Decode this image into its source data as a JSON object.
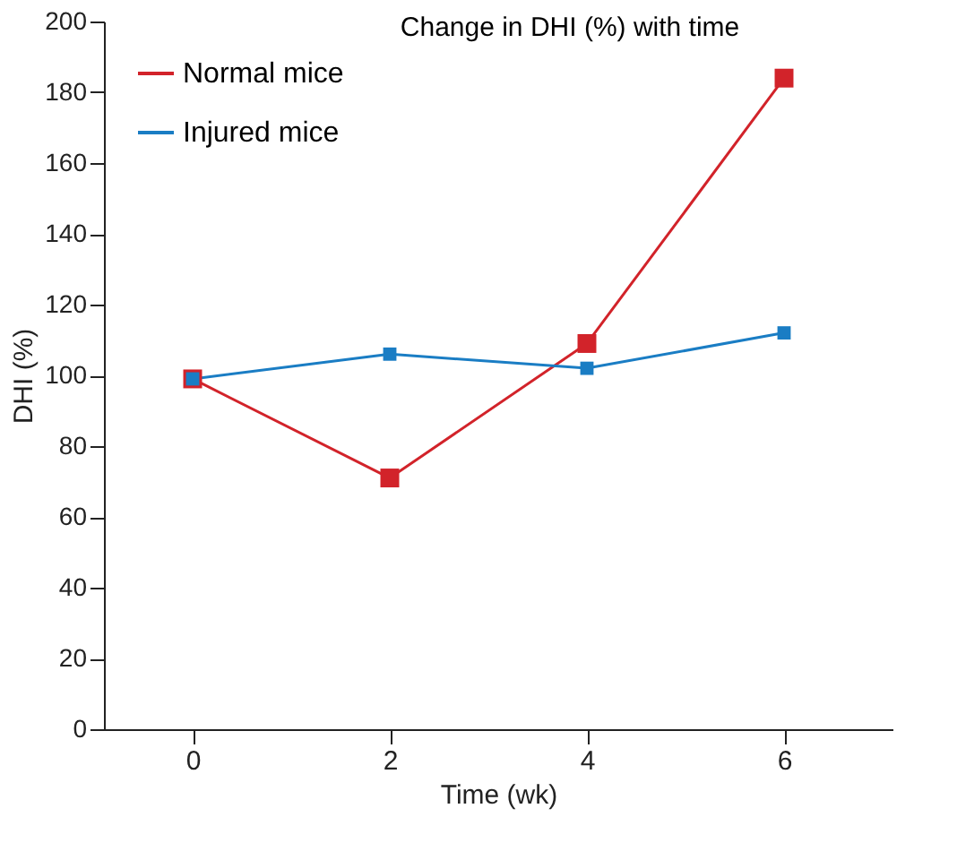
{
  "chart_data": {
    "type": "line",
    "title": "Change in DHI (%) with time",
    "xlabel": "Time (wk)",
    "ylabel": "DHI (%)",
    "x": [
      0,
      2,
      4,
      6
    ],
    "series": [
      {
        "name": "Normal mice",
        "color": "#d2232a",
        "values": [
          99,
          71,
          109,
          184
        ]
      },
      {
        "name": "Injured mice",
        "color": "#1a7dc4",
        "values": [
          99,
          106,
          102,
          112
        ]
      }
    ],
    "xlim": [
      -0.9,
      7.1
    ],
    "xticks": [
      0,
      2,
      4,
      6
    ],
    "ylim": [
      0,
      200
    ],
    "yticks": [
      0,
      20,
      40,
      60,
      80,
      100,
      120,
      140,
      160,
      180,
      200
    ],
    "grid": false,
    "legend": "top left",
    "marker": "square",
    "line_style": "solid"
  }
}
